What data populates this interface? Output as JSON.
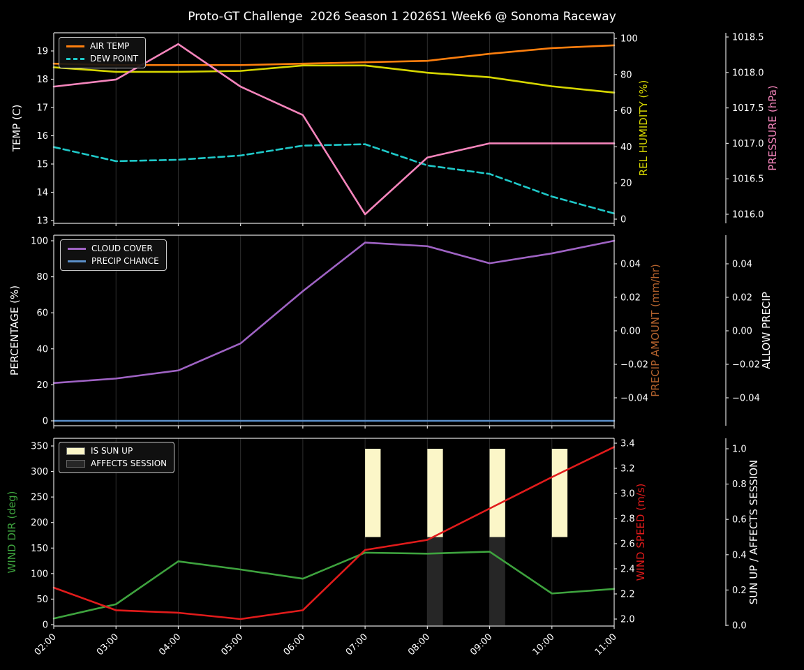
{
  "title": "Proto-GT Challenge  2026 Season 1 2026S1 Week6 @ Sonoma Raceway",
  "chart_data": [
    {
      "type": "line",
      "panel": "temperature-humidity-pressure",
      "x": [
        "02:00",
        "03:00",
        "04:00",
        "05:00",
        "06:00",
        "07:00",
        "08:00",
        "09:00",
        "10:00",
        "11:00"
      ],
      "series": [
        {
          "name": "AIR TEMP",
          "axis": "temp",
          "color": "#ff7f0e",
          "dash": false,
          "values": [
            18.55,
            18.5,
            18.5,
            18.5,
            18.55,
            18.6,
            18.65,
            18.9,
            19.1,
            19.2
          ]
        },
        {
          "name": "DEW POINT",
          "axis": "temp",
          "color": "#1fc9c9",
          "dash": true,
          "values": [
            15.6,
            15.1,
            15.15,
            15.3,
            15.65,
            15.7,
            14.95,
            14.65,
            13.85,
            13.25
          ]
        },
        {
          "name": "REL HUMIDITY",
          "axis": "humidity",
          "color": "#d6d600",
          "dash": false,
          "values": [
            84,
            81.5,
            81.5,
            82,
            85,
            85,
            81,
            78.5,
            73.5,
            70
          ]
        },
        {
          "name": "PRESSURE",
          "axis": "pressure",
          "color": "#f585bc",
          "dash": false,
          "values": [
            1017.8,
            1017.9,
            1018.4,
            1017.8,
            1017.4,
            1016.0,
            1016.8,
            1017.0,
            1017.0,
            1017.0
          ]
        }
      ],
      "axes": {
        "left": {
          "label": "TEMP (C)",
          "color": "#ffffff",
          "scale": "temp",
          "ticks": [
            {
              "v": 13,
              "t": "13"
            },
            {
              "v": 14,
              "t": "14"
            },
            {
              "v": 15,
              "t": "15"
            },
            {
              "v": 16,
              "t": "16"
            },
            {
              "v": 17,
              "t": "17"
            },
            {
              "v": 18,
              "t": "18"
            },
            {
              "v": 19,
              "t": "19"
            }
          ]
        },
        "right1": {
          "label": "REL HUMIDITY (%)",
          "color": "#d6d600",
          "scale": "humidity",
          "ticks": [
            {
              "v": 0,
              "t": "0"
            },
            {
              "v": 20,
              "t": "20"
            },
            {
              "v": 40,
              "t": "40"
            },
            {
              "v": 60,
              "t": "60"
            },
            {
              "v": 80,
              "t": "80"
            },
            {
              "v": 100,
              "t": "100"
            }
          ]
        },
        "right2": {
          "label": "PRESSURE (hPa)",
          "color": "#f585bc",
          "scale": "pressure",
          "ticks": [
            {
              "v": 1016.0,
              "t": "1016.0"
            },
            {
              "v": 1016.5,
              "t": "1016.5"
            },
            {
              "v": 1017.0,
              "t": "1017.0"
            },
            {
              "v": 1017.5,
              "t": "1017.5"
            },
            {
              "v": 1018.0,
              "t": "1018.0"
            },
            {
              "v": 1018.5,
              "t": "1018.5"
            }
          ]
        }
      },
      "legend": [
        "AIR TEMP",
        "DEW POINT"
      ]
    },
    {
      "type": "line",
      "panel": "cloud-precip",
      "x": [
        "02:00",
        "03:00",
        "04:00",
        "05:00",
        "06:00",
        "07:00",
        "08:00",
        "09:00",
        "10:00",
        "11:00"
      ],
      "series": [
        {
          "name": "CLOUD COVER",
          "axis": "pct",
          "color": "#9f63c4",
          "dash": false,
          "values": [
            21,
            23.5,
            28,
            43,
            72,
            99,
            97,
            87.5,
            93,
            100
          ]
        },
        {
          "name": "PRECIP CHANCE",
          "axis": "pct",
          "color": "#5b8fc9",
          "dash": false,
          "values": [
            0,
            0,
            0,
            0,
            0,
            0,
            0,
            0,
            0,
            0
          ]
        }
      ],
      "axes": {
        "left": {
          "label": "PERCENTAGE (%)",
          "color": "#ffffff",
          "scale": "pct",
          "ticks": [
            {
              "v": 0,
              "t": "0"
            },
            {
              "v": 20,
              "t": "20"
            },
            {
              "v": 40,
              "t": "40"
            },
            {
              "v": 60,
              "t": "60"
            },
            {
              "v": 80,
              "t": "80"
            },
            {
              "v": 100,
              "t": "100"
            }
          ]
        },
        "right1": {
          "label": "PRECIP AMOUNT (mm/hr)",
          "color": "#b4622d",
          "scale": "precip",
          "ticks": [
            {
              "v": 0.04,
              "t": "0.04"
            },
            {
              "v": 0.02,
              "t": "0.02"
            },
            {
              "v": 0,
              "t": "0.00"
            },
            {
              "v": -0.02,
              "t": "−0.02"
            },
            {
              "v": -0.04,
              "t": "−0.04"
            }
          ]
        },
        "right2": {
          "label": "ALLOW PRECIP",
          "color": "#ffffff",
          "scale": "precip",
          "ticks": [
            {
              "v": 0.04,
              "t": "0.04"
            },
            {
              "v": 0.02,
              "t": "0.02"
            },
            {
              "v": 0,
              "t": "0.00"
            },
            {
              "v": -0.02,
              "t": "−0.02"
            },
            {
              "v": -0.04,
              "t": "−0.04"
            }
          ]
        }
      },
      "legend": [
        "CLOUD COVER",
        "PRECIP CHANCE"
      ]
    },
    {
      "type": "line_bar",
      "panel": "wind-sun",
      "x": [
        "02:00",
        "03:00",
        "04:00",
        "05:00",
        "06:00",
        "07:00",
        "08:00",
        "09:00",
        "10:00",
        "11:00"
      ],
      "bars": [
        {
          "name": "IS SUN UP",
          "color": "#fbf6c8",
          "axis": "sun",
          "base": 0.5,
          "top": 1.0,
          "flags": [
            0,
            0,
            0,
            0,
            0,
            1,
            1,
            1,
            1,
            0
          ]
        },
        {
          "name": "AFFECTS SESSION",
          "color": "#262626",
          "axis": "sun",
          "base": 0.0,
          "top": 0.5,
          "flags": [
            0,
            0,
            0,
            0,
            0,
            0,
            1,
            1,
            0,
            0
          ]
        }
      ],
      "series": [
        {
          "name": "WIND DIR",
          "axis": "dir",
          "color": "#3ea33e",
          "dash": false,
          "values": [
            12,
            40,
            124,
            108,
            90,
            141,
            139,
            143,
            61,
            70
          ]
        },
        {
          "name": "WIND SPEED",
          "axis": "speed",
          "color": "#e11b1b",
          "dash": false,
          "values": [
            2.25,
            2.07,
            2.05,
            2.0,
            2.07,
            2.55,
            2.63,
            2.88,
            3.13,
            3.37
          ]
        }
      ],
      "axes": {
        "left": {
          "label": "WIND DIR (deg)",
          "color": "#3ea33e",
          "scale": "dir",
          "ticks": [
            {
              "v": 0,
              "t": "0"
            },
            {
              "v": 50,
              "t": "50"
            },
            {
              "v": 100,
              "t": "100"
            },
            {
              "v": 150,
              "t": "150"
            },
            {
              "v": 200,
              "t": "200"
            },
            {
              "v": 250,
              "t": "250"
            },
            {
              "v": 300,
              "t": "300"
            },
            {
              "v": 350,
              "t": "350"
            }
          ]
        },
        "right1": {
          "label": "WIND SPEED (m/s)",
          "color": "#e11b1b",
          "scale": "speed",
          "ticks": [
            {
              "v": 2.0,
              "t": "2.0"
            },
            {
              "v": 2.2,
              "t": "2.2"
            },
            {
              "v": 2.4,
              "t": "2.4"
            },
            {
              "v": 2.6,
              "t": "2.6"
            },
            {
              "v": 2.8,
              "t": "2.8"
            },
            {
              "v": 3.0,
              "t": "3.0"
            },
            {
              "v": 3.2,
              "t": "3.2"
            },
            {
              "v": 3.4,
              "t": "3.4"
            }
          ]
        },
        "right2": {
          "label": "SUN UP / AFFECTS SESSION",
          "color": "#ffffff",
          "scale": "sun",
          "ticks": [
            {
              "v": 0.0,
              "t": "0.0"
            },
            {
              "v": 0.2,
              "t": "0.2"
            },
            {
              "v": 0.4,
              "t": "0.4"
            },
            {
              "v": 0.6,
              "t": "0.6"
            },
            {
              "v": 0.8,
              "t": "0.8"
            },
            {
              "v": 1.0,
              "t": "1.0"
            }
          ]
        }
      },
      "legend": [
        "IS SUN UP",
        "AFFECTS SESSION"
      ]
    }
  ]
}
